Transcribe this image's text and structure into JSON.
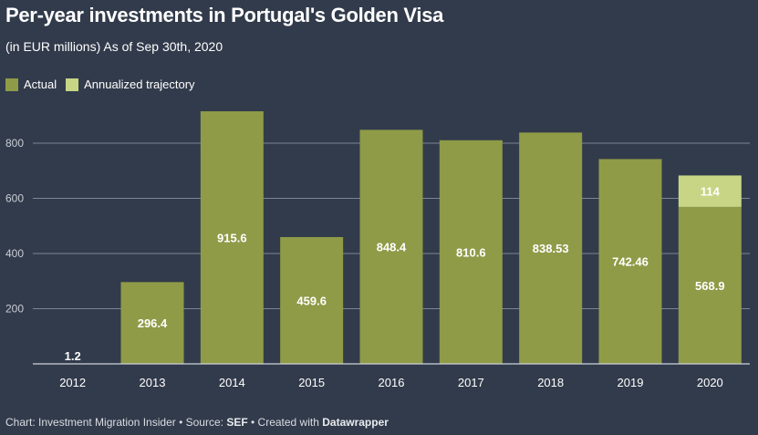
{
  "header": {
    "title": "Per-year investments in Portugal's Golden Visa",
    "subtitle": "(in EUR millions) As of Sep 30th, 2020"
  },
  "legend": {
    "items": [
      {
        "label": "Actual",
        "color": "#8f9b47"
      },
      {
        "label": "Annualized trajectory",
        "color": "#c7d585"
      }
    ]
  },
  "footer": {
    "prefix": "Chart: Investment Migration Insider • Source: ",
    "source": "SEF",
    "middle": " • Created with ",
    "tool": "Datawrapper"
  },
  "chart_data": {
    "type": "bar",
    "stacked": true,
    "categories": [
      "2012",
      "2013",
      "2014",
      "2015",
      "2016",
      "2017",
      "2018",
      "2019",
      "2020"
    ],
    "series": [
      {
        "name": "Actual",
        "color": "#8f9b47",
        "values": [
          1.2,
          296.4,
          915.6,
          459.6,
          848.4,
          810.6,
          838.53,
          742.46,
          568.9
        ]
      },
      {
        "name": "Annualized trajectory",
        "color": "#c7d585",
        "values": [
          null,
          null,
          null,
          null,
          null,
          null,
          null,
          null,
          114
        ]
      }
    ],
    "yticks": [
      200,
      400,
      600,
      800
    ],
    "ylim": [
      0,
      920
    ],
    "grid": true,
    "legend_position": "top-left"
  }
}
